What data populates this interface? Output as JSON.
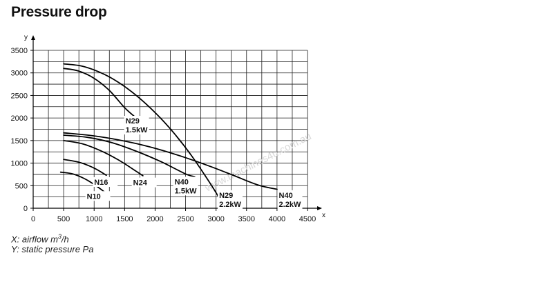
{
  "title": "Pressure drop",
  "notes": {
    "x_prefix": "X: airflow m",
    "x_sup": "3",
    "x_suffix": "/h",
    "y": "Y: static pressure Pa"
  },
  "watermark": "www.machines4u.com.au",
  "chart_data": {
    "type": "line",
    "xlabel": "x",
    "ylabel": "y",
    "xlim": [
      0,
      4500
    ],
    "ylim": [
      0,
      3500
    ],
    "xticks": [
      0,
      500,
      1000,
      1500,
      2000,
      2500,
      3000,
      3500,
      4000,
      4500
    ],
    "yticks": [
      0,
      500,
      1000,
      1500,
      2000,
      2500,
      3000,
      3500
    ],
    "grid": true,
    "series": [
      {
        "key": "n29a",
        "x": [
          500,
          800,
          1100,
          1400,
          1700,
          2000,
          2300,
          2600,
          2900,
          3050
        ],
        "y": [
          3200,
          3150,
          3010,
          2790,
          2490,
          2120,
          1680,
          1160,
          560,
          230
        ]
      },
      {
        "key": "n29b",
        "x": [
          500,
          750,
          1000,
          1250,
          1500,
          1700
        ],
        "y": [
          3100,
          3040,
          2880,
          2610,
          2230,
          1990
        ]
      },
      {
        "key": "n40a",
        "x": [
          500,
          900,
          1300,
          1700,
          2100,
          2500,
          2900,
          3300,
          3700,
          4000
        ],
        "y": [
          1670,
          1620,
          1540,
          1430,
          1290,
          1120,
          930,
          720,
          510,
          420
        ]
      },
      {
        "key": "n40b",
        "x": [
          500,
          900,
          1300,
          1700,
          2100,
          2500,
          2650
        ],
        "y": [
          1620,
          1570,
          1450,
          1260,
          1030,
          760,
          700
        ]
      },
      {
        "key": "n24",
        "x": [
          500,
          800,
          1100,
          1400,
          1700,
          1800
        ],
        "y": [
          1500,
          1430,
          1280,
          1070,
          810,
          720
        ]
      },
      {
        "key": "n16",
        "x": [
          500,
          750,
          1000,
          1200
        ],
        "y": [
          1080,
          1020,
          890,
          730
        ]
      },
      {
        "key": "n10",
        "x": [
          450,
          650,
          850,
          1050,
          1200
        ],
        "y": [
          800,
          760,
          650,
          480,
          330
        ]
      }
    ],
    "annotations": [
      {
        "line1": "N29",
        "line2": "1.5kW",
        "x": 1515,
        "y": 1880
      },
      {
        "line1": "N16",
        "line2": "",
        "x": 1000,
        "y": 520
      },
      {
        "line1": "N24",
        "line2": "",
        "x": 1640,
        "y": 510
      },
      {
        "line1": "N40",
        "line2": "1.5kW",
        "x": 2320,
        "y": 530
      },
      {
        "line1": "N10",
        "line2": "",
        "x": 880,
        "y": 210
      },
      {
        "line1": "N29",
        "line2": "2.2kW",
        "x": 3050,
        "y": 230
      },
      {
        "line1": "N40",
        "line2": "2.2kW",
        "x": 4030,
        "y": 230
      }
    ]
  }
}
